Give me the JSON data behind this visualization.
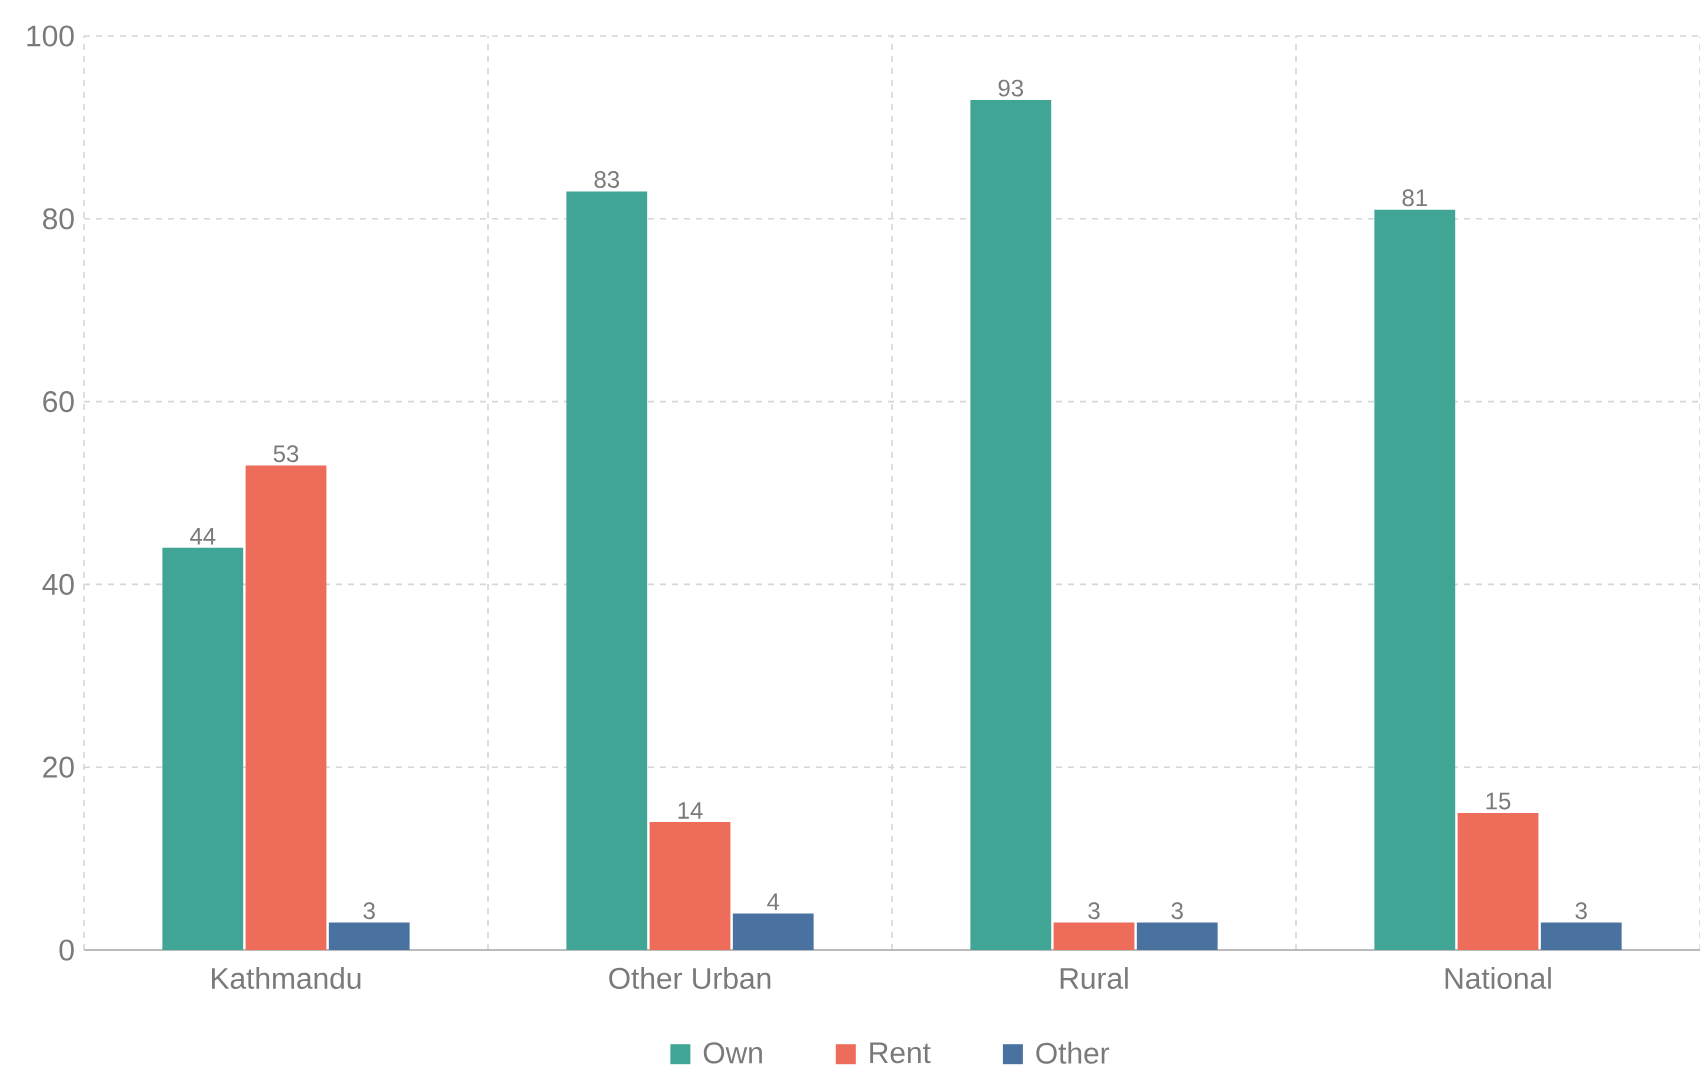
{
  "chart_data": {
    "type": "bar",
    "categories": [
      "Kathmandu",
      "Other Urban",
      "Rural",
      "National"
    ],
    "series": [
      {
        "name": "Own",
        "color": "#41a596",
        "values": [
          44,
          83,
          93,
          81
        ]
      },
      {
        "name": "Rent",
        "color": "#ee6d5a",
        "values": [
          53,
          14,
          3,
          15
        ]
      },
      {
        "name": "Other",
        "color": "#4a72a0",
        "values": [
          3,
          4,
          3,
          3
        ]
      }
    ],
    "ylim": [
      0,
      100
    ],
    "yticks": [
      0,
      20,
      40,
      60,
      80,
      100
    ],
    "grid": true,
    "legend": "bottom",
    "data_labels": true
  }
}
